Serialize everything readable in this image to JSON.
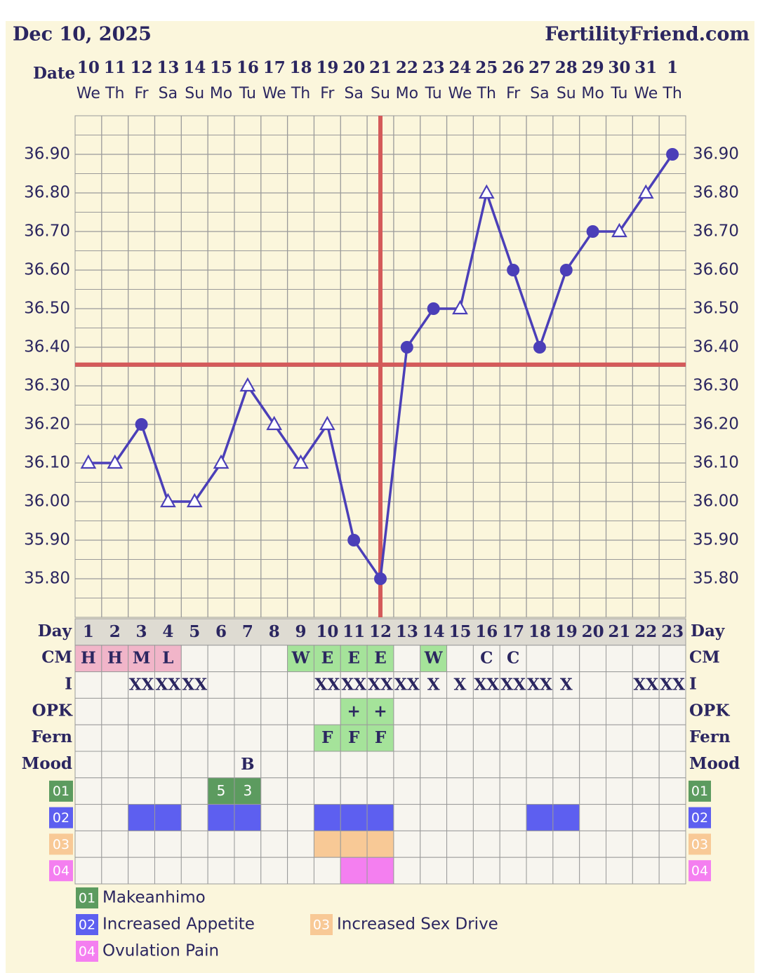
{
  "chart_data": {
    "type": "line",
    "title": "Dec 10, 2025",
    "site": "FertilityFriend.com",
    "date_label": "Date",
    "dates": [
      "10",
      "11",
      "12",
      "13",
      "14",
      "15",
      "16",
      "17",
      "18",
      "19",
      "20",
      "21",
      "22",
      "23",
      "24",
      "25",
      "26",
      "27",
      "28",
      "29",
      "30",
      "31",
      "1"
    ],
    "weekdays": [
      "We",
      "Th",
      "Fr",
      "Sa",
      "Su",
      "Mo",
      "Tu",
      "We",
      "Th",
      "Fr",
      "Sa",
      "Su",
      "Mo",
      "Tu",
      "We",
      "Th",
      "Fr",
      "Sa",
      "Su",
      "Mo",
      "Tu",
      "We",
      "Th"
    ],
    "values": [
      36.1,
      36.1,
      36.2,
      36.0,
      36.0,
      36.1,
      36.3,
      36.2,
      36.1,
      36.2,
      35.9,
      35.8,
      36.4,
      36.5,
      36.5,
      36.8,
      36.6,
      36.4,
      36.6,
      36.7,
      36.7,
      36.8,
      36.9
    ],
    "markers": [
      "triangle",
      "triangle",
      "dot",
      "triangle",
      "triangle",
      "triangle",
      "triangle",
      "triangle",
      "triangle",
      "triangle",
      "dot",
      "dot",
      "dot",
      "dot",
      "triangle",
      "triangle",
      "dot",
      "dot",
      "dot",
      "dot",
      "triangle",
      "triangle",
      "dot"
    ],
    "color": "#4b3fb8",
    "coverline": 36.355,
    "coverline_color": "#d45a5a",
    "ovulation_index": 11,
    "ylim": [
      35.7,
      37.0
    ],
    "yticks": [
      {
        "value": 35.8,
        "label": "35.80"
      },
      {
        "value": 35.9,
        "label": "35.90"
      },
      {
        "value": 36.0,
        "label": "36.00"
      },
      {
        "value": 36.1,
        "label": "36.10"
      },
      {
        "value": 36.2,
        "label": "36.20"
      },
      {
        "value": 36.3,
        "label": "36.30"
      },
      {
        "value": 36.4,
        "label": "36.40"
      },
      {
        "value": 36.5,
        "label": "36.50"
      },
      {
        "value": 36.6,
        "label": "36.60"
      },
      {
        "value": 36.7,
        "label": "36.70"
      },
      {
        "value": 36.8,
        "label": "36.80"
      },
      {
        "value": 36.9,
        "label": "36.90"
      }
    ],
    "grid": true
  },
  "table": {
    "day_label": "Day",
    "days": [
      1,
      2,
      3,
      4,
      5,
      6,
      7,
      8,
      9,
      10,
      11,
      12,
      13,
      14,
      15,
      16,
      17,
      18,
      19,
      20,
      21,
      22,
      23
    ],
    "cell_colors": {
      "H": "#f1b5c9",
      "M": "#f1b5c9",
      "L": "#f1b5c9",
      "W": "#a5e39a",
      "E": "#a5e39a",
      "+": "#a5e39a",
      "F": "#a5e39a"
    },
    "rows": [
      {
        "label": "CM",
        "cells": [
          "H",
          "H",
          "M",
          "L",
          null,
          null,
          null,
          null,
          "W",
          "E",
          "E",
          "E",
          null,
          "W",
          null,
          "C",
          "C",
          null,
          null,
          null,
          null,
          null,
          null
        ]
      },
      {
        "label": "I",
        "cells": [
          null,
          null,
          "XX",
          "XX",
          "XX",
          null,
          null,
          null,
          null,
          "XX",
          "XX",
          "XX",
          "XX",
          "X",
          "X",
          "XX",
          "XX",
          "XX",
          "X",
          null,
          null,
          "XX",
          "XX"
        ]
      },
      {
        "label": "OPK",
        "cells": [
          null,
          null,
          null,
          null,
          null,
          null,
          null,
          null,
          null,
          null,
          "+",
          "+",
          null,
          null,
          null,
          null,
          null,
          null,
          null,
          null,
          null,
          null,
          null
        ]
      },
      {
        "label": "Fern",
        "cells": [
          null,
          null,
          null,
          null,
          null,
          null,
          null,
          null,
          null,
          "F",
          "F",
          "F",
          null,
          null,
          null,
          null,
          null,
          null,
          null,
          null,
          null,
          null,
          null
        ]
      },
      {
        "label": "Mood",
        "cells": [
          null,
          null,
          null,
          null,
          null,
          null,
          "B",
          null,
          null,
          null,
          null,
          null,
          null,
          null,
          null,
          null,
          null,
          null,
          null,
          null,
          null,
          null,
          null
        ]
      }
    ],
    "symptoms": [
      {
        "code": "01",
        "name": "Makeanhimo",
        "color": "#5c9b5f",
        "cells": [
          null,
          null,
          null,
          null,
          null,
          "5",
          "3",
          null,
          null,
          null,
          null,
          null,
          null,
          null,
          null,
          null,
          null,
          null,
          null,
          null,
          null,
          null,
          null
        ]
      },
      {
        "code": "02",
        "name": "Increased Appetite",
        "color": "#5d5ff0",
        "cells": [
          null,
          null,
          true,
          true,
          null,
          true,
          true,
          null,
          null,
          true,
          true,
          true,
          null,
          null,
          null,
          null,
          null,
          true,
          true,
          null,
          null,
          null,
          null
        ]
      },
      {
        "code": "03",
        "name": "Increased Sex Drive",
        "color": "#f8c996",
        "cells": [
          null,
          null,
          null,
          null,
          null,
          null,
          null,
          null,
          null,
          true,
          true,
          true,
          null,
          null,
          null,
          null,
          null,
          null,
          null,
          null,
          null,
          null,
          null
        ]
      },
      {
        "code": "04",
        "name": "Ovulation Pain",
        "color": "#f47ff0",
        "cells": [
          null,
          null,
          null,
          null,
          null,
          null,
          null,
          null,
          null,
          null,
          true,
          true,
          null,
          null,
          null,
          null,
          null,
          null,
          null,
          null,
          null,
          null,
          null
        ]
      }
    ]
  }
}
